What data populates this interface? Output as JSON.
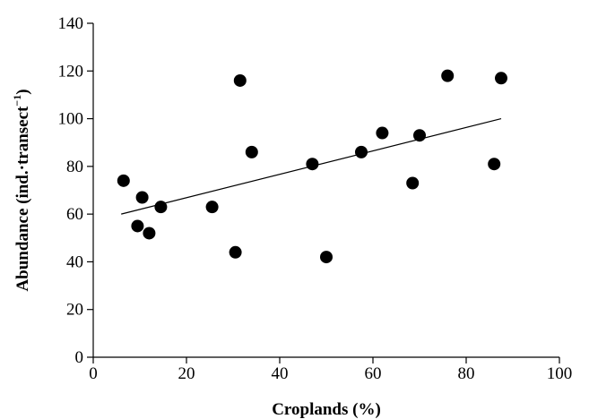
{
  "chart_data": {
    "type": "scatter",
    "title": "",
    "xlabel": "Croplands (%)",
    "ylabel_main": "Abundance (ind.·transect",
    "ylabel_exp": "−1",
    "ylabel_close": ")",
    "xlim": [
      0,
      100
    ],
    "ylim": [
      0,
      140
    ],
    "xticks": [
      0,
      20,
      40,
      60,
      80,
      100
    ],
    "yticks": [
      0,
      20,
      40,
      60,
      80,
      100,
      120,
      140
    ],
    "grid": false,
    "legend": "none",
    "points": [
      {
        "x": 6.5,
        "y": 74
      },
      {
        "x": 9.5,
        "y": 55
      },
      {
        "x": 10.5,
        "y": 67
      },
      {
        "x": 12,
        "y": 52
      },
      {
        "x": 14.5,
        "y": 63
      },
      {
        "x": 25.5,
        "y": 63
      },
      {
        "x": 30.5,
        "y": 44
      },
      {
        "x": 31.5,
        "y": 116
      },
      {
        "x": 34,
        "y": 86
      },
      {
        "x": 47,
        "y": 81
      },
      {
        "x": 50,
        "y": 42
      },
      {
        "x": 57.5,
        "y": 86
      },
      {
        "x": 62,
        "y": 94
      },
      {
        "x": 68.5,
        "y": 73
      },
      {
        "x": 70,
        "y": 93
      },
      {
        "x": 76,
        "y": 118
      },
      {
        "x": 86,
        "y": 81
      },
      {
        "x": 87.5,
        "y": 117
      }
    ],
    "trendline": {
      "x": [
        6,
        87.5
      ],
      "y": [
        60,
        100
      ]
    },
    "colors": {
      "marker": "#000000",
      "line": "#000000"
    }
  }
}
